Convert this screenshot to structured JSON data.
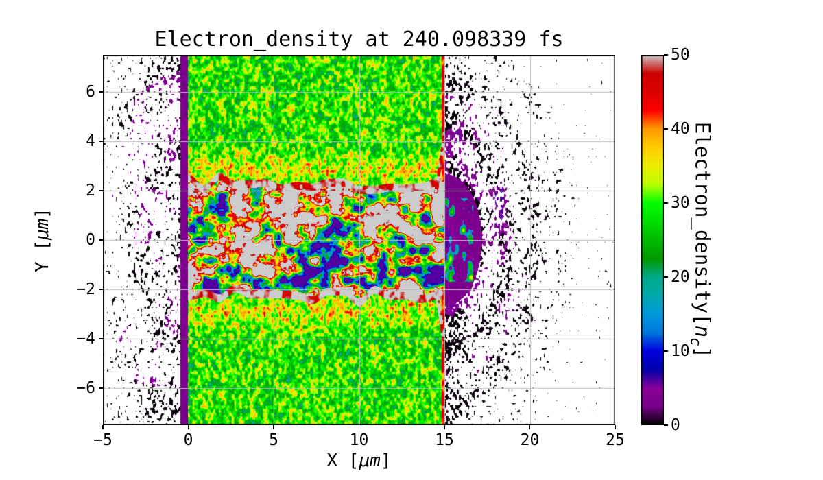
{
  "figure": {
    "background": "#ffffff",
    "frame_color": "#000000",
    "grid_color": "#bdbdbd"
  },
  "chart_data": {
    "type": "heatmap",
    "title": "Electron_density at 240.098339 fs",
    "time_fs": 240.098339,
    "xlabel": "X [μm]",
    "ylabel": "Y [μm]",
    "xlabel_parts": {
      "prefix": "X [",
      "unit": "μm",
      "suffix": "]"
    },
    "ylabel_parts": {
      "prefix": "Y [",
      "unit": "μm",
      "suffix": "]"
    },
    "xlim": [
      -5,
      25
    ],
    "ylim": [
      -7.5,
      7.5
    ],
    "grid": true,
    "x_ticks": [
      {
        "v": -5,
        "label": "−5"
      },
      {
        "v": 0,
        "label": "0"
      },
      {
        "v": 5,
        "label": "5"
      },
      {
        "v": 10,
        "label": "10"
      },
      {
        "v": 15,
        "label": "15"
      },
      {
        "v": 20,
        "label": "20"
      },
      {
        "v": 25,
        "label": "25"
      }
    ],
    "y_ticks": [
      {
        "v": -6,
        "label": "−6"
      },
      {
        "v": -4,
        "label": "−4"
      },
      {
        "v": -2,
        "label": "−2"
      },
      {
        "v": 0,
        "label": "0"
      },
      {
        "v": 2,
        "label": "2"
      },
      {
        "v": 4,
        "label": "4"
      },
      {
        "v": 6,
        "label": "6"
      }
    ],
    "colorbar": {
      "label": "Electron_density[nc]",
      "label_parts": {
        "prefix": "Electron_density[",
        "var": "n",
        "sub": "c",
        "suffix": "]"
      },
      "min": 0,
      "max": 50,
      "ticks": [
        0,
        10,
        20,
        30,
        40,
        50
      ],
      "colormap": "nipy_spectral"
    },
    "colormap_stops": [
      [
        0.0,
        0.0,
        0.0,
        0.0
      ],
      [
        0.05,
        0.4667,
        0.0,
        0.5333
      ],
      [
        0.1,
        0.5333,
        0.0,
        0.6
      ],
      [
        0.15,
        0.0,
        0.0,
        0.6667
      ],
      [
        0.2,
        0.0,
        0.0,
        0.8667
      ],
      [
        0.25,
        0.0,
        0.4667,
        0.8667
      ],
      [
        0.3,
        0.0,
        0.6,
        0.8667
      ],
      [
        0.35,
        0.0,
        0.6667,
        0.6667
      ],
      [
        0.4,
        0.0,
        0.6667,
        0.5333
      ],
      [
        0.45,
        0.0,
        0.6,
        0.0
      ],
      [
        0.5,
        0.0,
        0.7333,
        0.0
      ],
      [
        0.55,
        0.0,
        0.8667,
        0.0
      ],
      [
        0.6,
        0.0,
        1.0,
        0.0
      ],
      [
        0.65,
        0.7333,
        1.0,
        0.0
      ],
      [
        0.7,
        0.9333,
        0.9333,
        0.0
      ],
      [
        0.75,
        1.0,
        0.8,
        0.0
      ],
      [
        0.8,
        1.0,
        0.6,
        0.0
      ],
      [
        0.85,
        1.0,
        0.0,
        0.0
      ],
      [
        0.9,
        0.8667,
        0.0,
        0.0
      ],
      [
        0.95,
        0.8,
        0.0,
        0.0
      ],
      [
        1.0,
        0.8,
        0.8,
        0.8
      ]
    ],
    "regions": [
      {
        "name": "plasma-slab",
        "x_range": [
          0,
          15
        ],
        "y_range": [
          -7.5,
          7.5
        ],
        "density_nc": [
          20,
          38
        ],
        "appearance": "speckled bright green with yellow flecks, mean ~30 nc"
      },
      {
        "name": "laser-channel-filaments",
        "x_range": [
          0,
          15
        ],
        "y_range": [
          -2.3,
          2.3
        ],
        "density_nc": [
          8,
          50
        ],
        "appearance": "filamentary mix of blue/teal voids, green, yellow, red clumps and >50 nc gray cores; continuous red ridges along y = ±2.2"
      },
      {
        "name": "front-sheath",
        "x_range": [
          -0.45,
          0
        ],
        "y_range": [
          -7.5,
          7.5
        ],
        "density_nc": [
          2,
          6
        ],
        "appearance": "thin dark purple vertical strip at target front"
      },
      {
        "name": "rear-expansion-arcs",
        "x_range": [
          15,
          23
        ],
        "y_range": [
          -7,
          7
        ],
        "density_nc": [
          0,
          6
        ],
        "appearance": "concentric purple/black speckle arcs centred near (15, 0) fading to white"
      },
      {
        "name": "front-scattered-electrons",
        "x_range": [
          -5,
          -0.45
        ],
        "y_range": [
          -7.5,
          7.5
        ],
        "density_nc": [
          0,
          5
        ],
        "appearance": "sparse black speckle on white with faint purple arc smudges"
      }
    ],
    "procedural": {
      "slab": {
        "x0": 0,
        "x1": 15,
        "base": 28.5,
        "speckle_amp": 26,
        "speckle_freq": 6.5,
        "yellow_band_center": 2.9,
        "yellow_band_amp": 5.5
      },
      "band": {
        "half_width": 2.25,
        "edge_wobble": 0.7,
        "ridge_width": 0.16,
        "ridge_base": 43,
        "ridge_amp": 14,
        "fil_freq_x": 1.5,
        "fil_freq_y": 2.4,
        "fil_contrast": 2.6,
        "fil_base": 6,
        "fil_range": 50
      },
      "left_strip": {
        "x0": -0.45,
        "value": 3.5
      },
      "right": {
        "y_aspect": 0.82,
        "halo_r": 2.2,
        "ring_freq": 3.8,
        "cover_base": 1.05,
        "cover_slope": 0.13
      },
      "left": {
        "cover_base": 0.68,
        "cover_slope": 0.115,
        "ring_freq": 2.6
      }
    }
  }
}
